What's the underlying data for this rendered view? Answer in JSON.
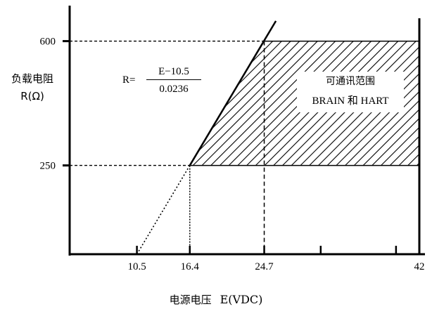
{
  "chart_data": {
    "type": "area",
    "ylabel_lines": [
      "负载电阻",
      "R(Ω)"
    ],
    "xlabel": [
      "电源电压",
      "E(VDC)"
    ],
    "x_ticks": [
      10.5,
      16.4,
      24.7,
      42
    ],
    "x_tick_labels": [
      "10.5",
      "16.4",
      "24.7",
      "42"
    ],
    "y_ticks": [
      250,
      600
    ],
    "y_tick_labels": [
      "250",
      "600"
    ],
    "xlim": [
      3,
      42
    ],
    "ylim": [
      0,
      700
    ],
    "formula": {
      "lhs": "R=",
      "numerator": "E−10.5",
      "denominator": "0.0236"
    },
    "load_line": {
      "x": [
        10.5,
        26.0
      ],
      "y": [
        0,
        656.8
      ]
    },
    "region": {
      "label_lines": [
        "可通讯范围",
        "BRAIN 和 HART"
      ],
      "x": [
        16.4,
        24.7,
        42,
        42
      ],
      "y": [
        250,
        600,
        600,
        250
      ]
    },
    "guides": [
      {
        "x": 16.4,
        "y": 250
      },
      {
        "x": 24.7,
        "y": 600
      }
    ]
  }
}
